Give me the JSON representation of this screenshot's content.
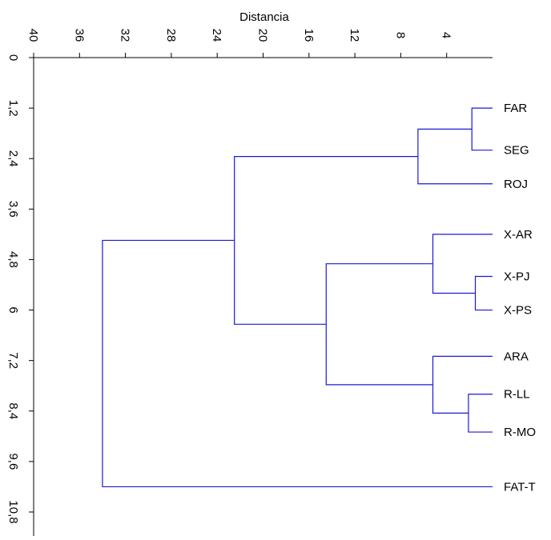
{
  "chart_data": {
    "type": "dendrogram",
    "title": "",
    "xlabel": "Distancia",
    "ylabel": "",
    "x_axis_position": "top",
    "x_direction": "reversed",
    "xlim": [
      0,
      40
    ],
    "ylim": [
      0,
      10.8
    ],
    "x_ticks": [
      "40",
      "36",
      "32",
      "28",
      "24",
      "20",
      "16",
      "12",
      "8",
      "4"
    ],
    "x_tick_values": [
      40,
      36,
      32,
      28,
      24,
      20,
      16,
      12,
      8,
      4
    ],
    "y_ticks": [
      "0",
      "1,2",
      "2,4",
      "3,6",
      "4,8",
      "6",
      "7,2",
      "8,4",
      "9,6",
      "10,8"
    ],
    "y_tick_values": [
      0,
      1.2,
      2.4,
      3.6,
      4.8,
      6,
      7.2,
      8.4,
      9.6,
      10.8
    ],
    "leaves": [
      {
        "label": "FAR",
        "y": 1.2
      },
      {
        "label": "SEG",
        "y": 2.2
      },
      {
        "label": "ROJ",
        "y": 3.0
      },
      {
        "label": "X-AR",
        "y": 4.2
      },
      {
        "label": "X-PJ",
        "y": 5.2
      },
      {
        "label": "X-PS",
        "y": 6.0
      },
      {
        "label": "ARA",
        "y": 7.1
      },
      {
        "label": "R-LL",
        "y": 8.0
      },
      {
        "label": "R-MO",
        "y": 8.9
      },
      {
        "label": "FAT-T",
        "y": 10.2
      }
    ],
    "merges": [
      {
        "children": [
          "FAR",
          "SEG"
        ],
        "distance": 1.8
      },
      {
        "children": [
          "X-PJ",
          "X-PS"
        ],
        "distance": 1.5
      },
      {
        "children": [
          "R-LL",
          "R-MO"
        ],
        "distance": 2.1
      },
      {
        "children": [
          "FAR+SEG",
          "ROJ"
        ],
        "distance": 6.5
      },
      {
        "children": [
          "X-AR",
          "X-PJ+X-PS"
        ],
        "distance": 5.2
      },
      {
        "children": [
          "ARA",
          "R-LL+R-MO"
        ],
        "distance": 5.2
      },
      {
        "children": [
          "X-AR+X-PJ+X-PS",
          "ARA+R-LL+R-MO"
        ],
        "distance": 14.5
      },
      {
        "children": [
          "FAR+SEG+ROJ",
          "X-group+R-group"
        ],
        "distance": 22.5
      },
      {
        "children": [
          "...",
          "FAT-T"
        ],
        "distance": 34.0
      }
    ],
    "colors": {
      "branches": "#1a1ad6",
      "axes": "#000000"
    }
  }
}
